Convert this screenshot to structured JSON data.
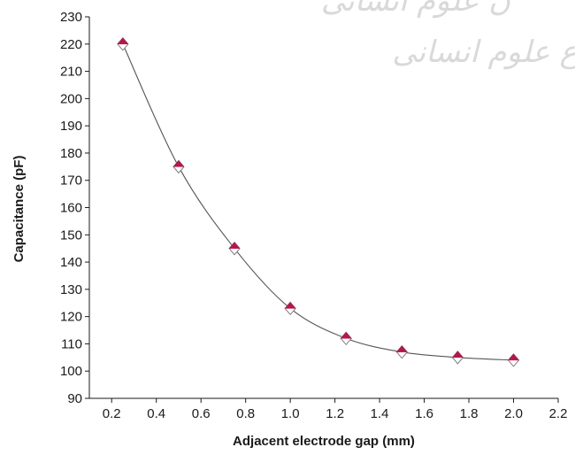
{
  "chart_data": {
    "type": "line",
    "xlabel": "Adjacent electrode gap (mm)",
    "ylabel": "Capacitance (pF)",
    "xlim": [
      0.1,
      2.2
    ],
    "ylim": [
      90,
      230
    ],
    "x_ticks": [
      0.2,
      0.4,
      0.6,
      0.8,
      1.0,
      1.2,
      1.4,
      1.6,
      1.8,
      2.0,
      2.2
    ],
    "x_tick_labels": [
      "0.2",
      "0.4",
      "0.6",
      "0.8",
      "1.0",
      "1.2",
      "1.4",
      "1.6",
      "1.8",
      "2.0",
      "2.2"
    ],
    "y_ticks": [
      90,
      100,
      110,
      120,
      130,
      140,
      150,
      160,
      170,
      180,
      190,
      200,
      210,
      220,
      230
    ],
    "y_tick_labels": [
      "90",
      "100",
      "110",
      "120",
      "130",
      "140",
      "150",
      "160",
      "170",
      "180",
      "190",
      "200",
      "210",
      "220",
      "230"
    ],
    "grid": false,
    "legend": "none",
    "series": [
      {
        "x": [
          0.25,
          0.5,
          0.75,
          1.0,
          1.25,
          1.5,
          1.75,
          2.0
        ],
        "y": [
          220,
          175,
          145,
          123,
          112,
          107,
          105,
          104
        ],
        "marker": "diamond",
        "marker_fill": "#b5174a",
        "line_color": "#555555",
        "smooth": true
      }
    ]
  },
  "watermark": {
    "lines": [
      "ن علوم انسانی",
      "ع علوم انسانی"
    ]
  },
  "colors": {
    "axis": "#1a1a1a",
    "marker": "#b5174a",
    "marker_outline": "#7a7a7a",
    "line": "#555555"
  }
}
